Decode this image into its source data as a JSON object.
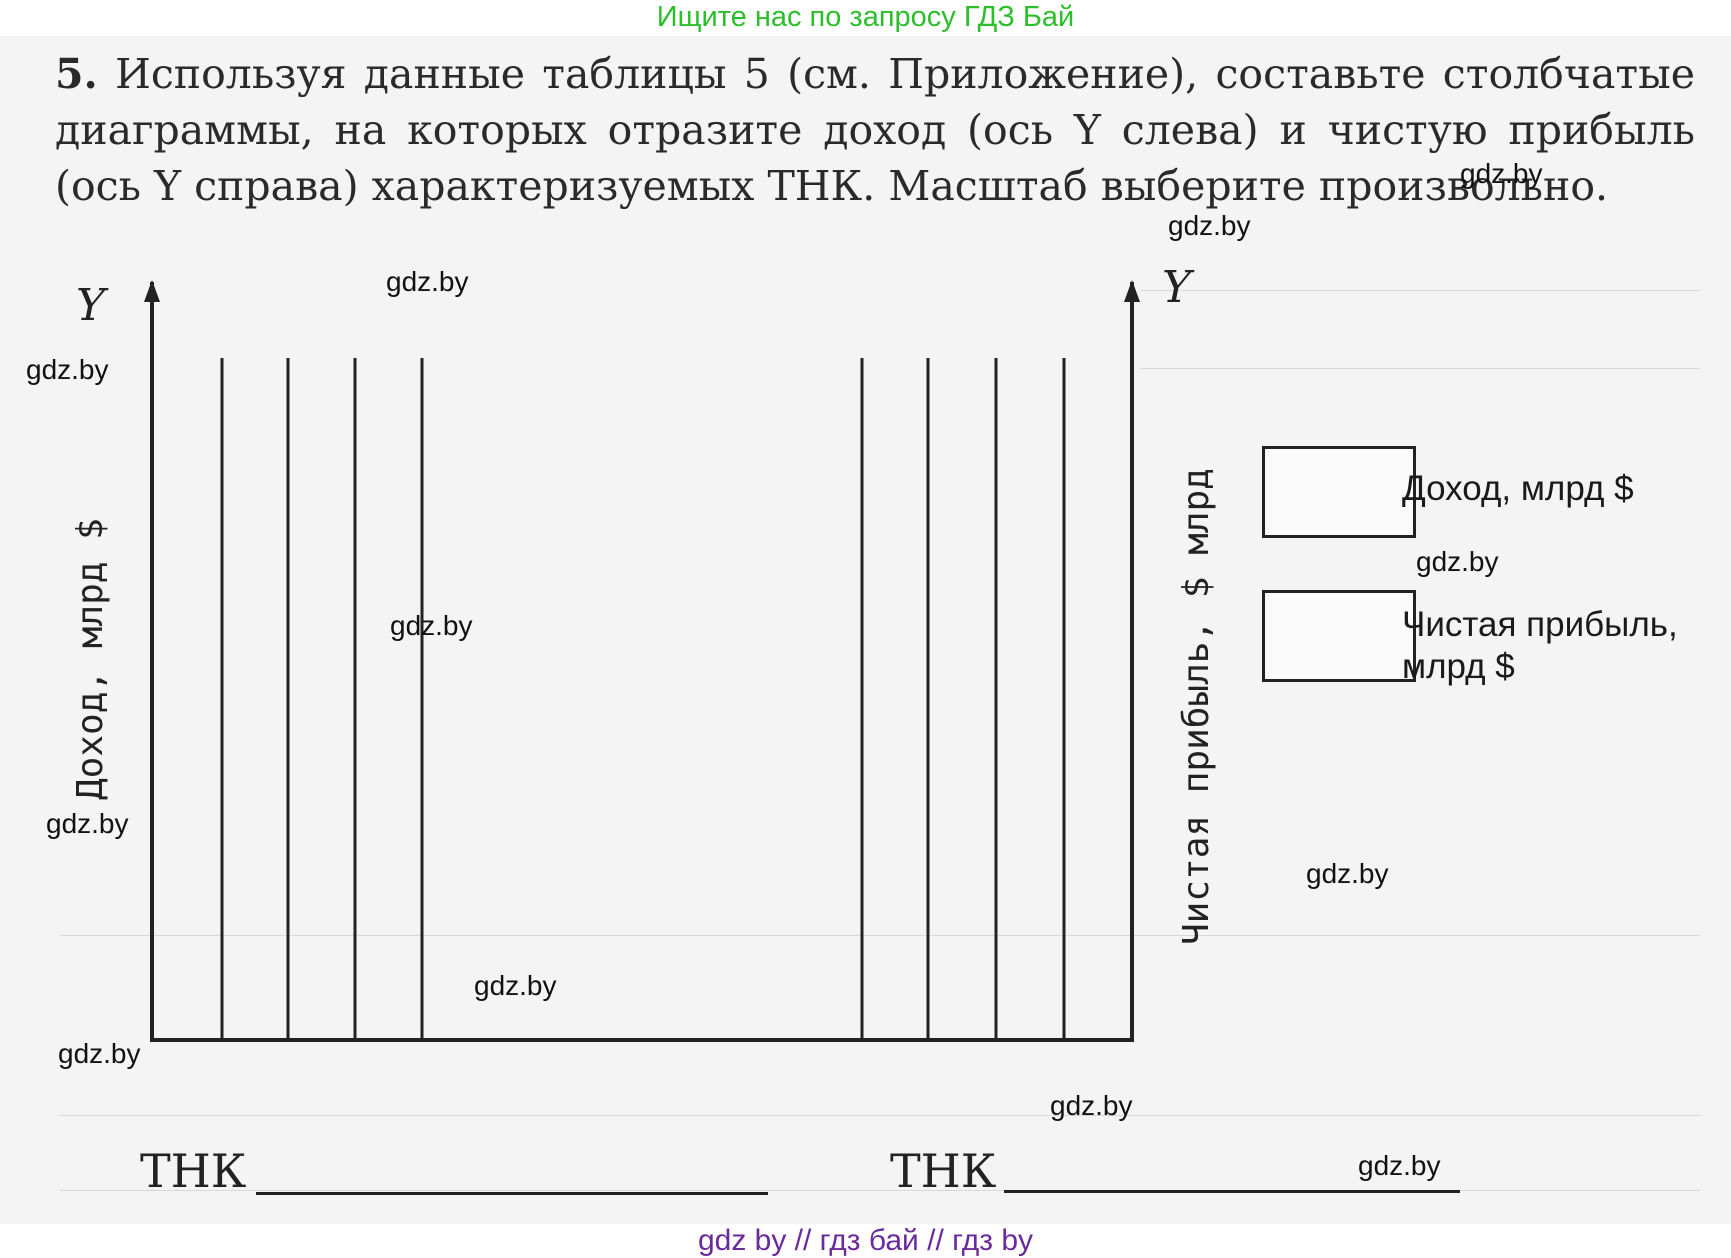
{
  "banner_top": "Ищите нас по запросу ГДЗ Бай",
  "banner_bottom": "gdz by  //  гдз бай  //  гдз by",
  "task": {
    "number": "5.",
    "text": "Используя данные таблицы 5 (см. Приложение), составьте столбчатые диаграммы, на которых отразите доход (ось Y слева) и чистую прибыль (ось Y справа) характеризуемых ТНК. Масштаб выберите произвольно."
  },
  "chart_left": {
    "axis_label": "Y",
    "y_title": "Доход, млрд $",
    "x_label": "ТНК"
  },
  "chart_right": {
    "axis_label": "Y",
    "y_title": "Чистая прибыль, $ млрд",
    "x_label": "ТНК"
  },
  "legend": [
    {
      "label": "Доход, млрд $"
    },
    {
      "label": "Чистая прибыль, млрд $"
    }
  ],
  "watermark": "gdz.by",
  "colors": {
    "banner_top": "#2cbf2c",
    "banner_bottom": "#6a2a9a",
    "ink": "#222222"
  }
}
